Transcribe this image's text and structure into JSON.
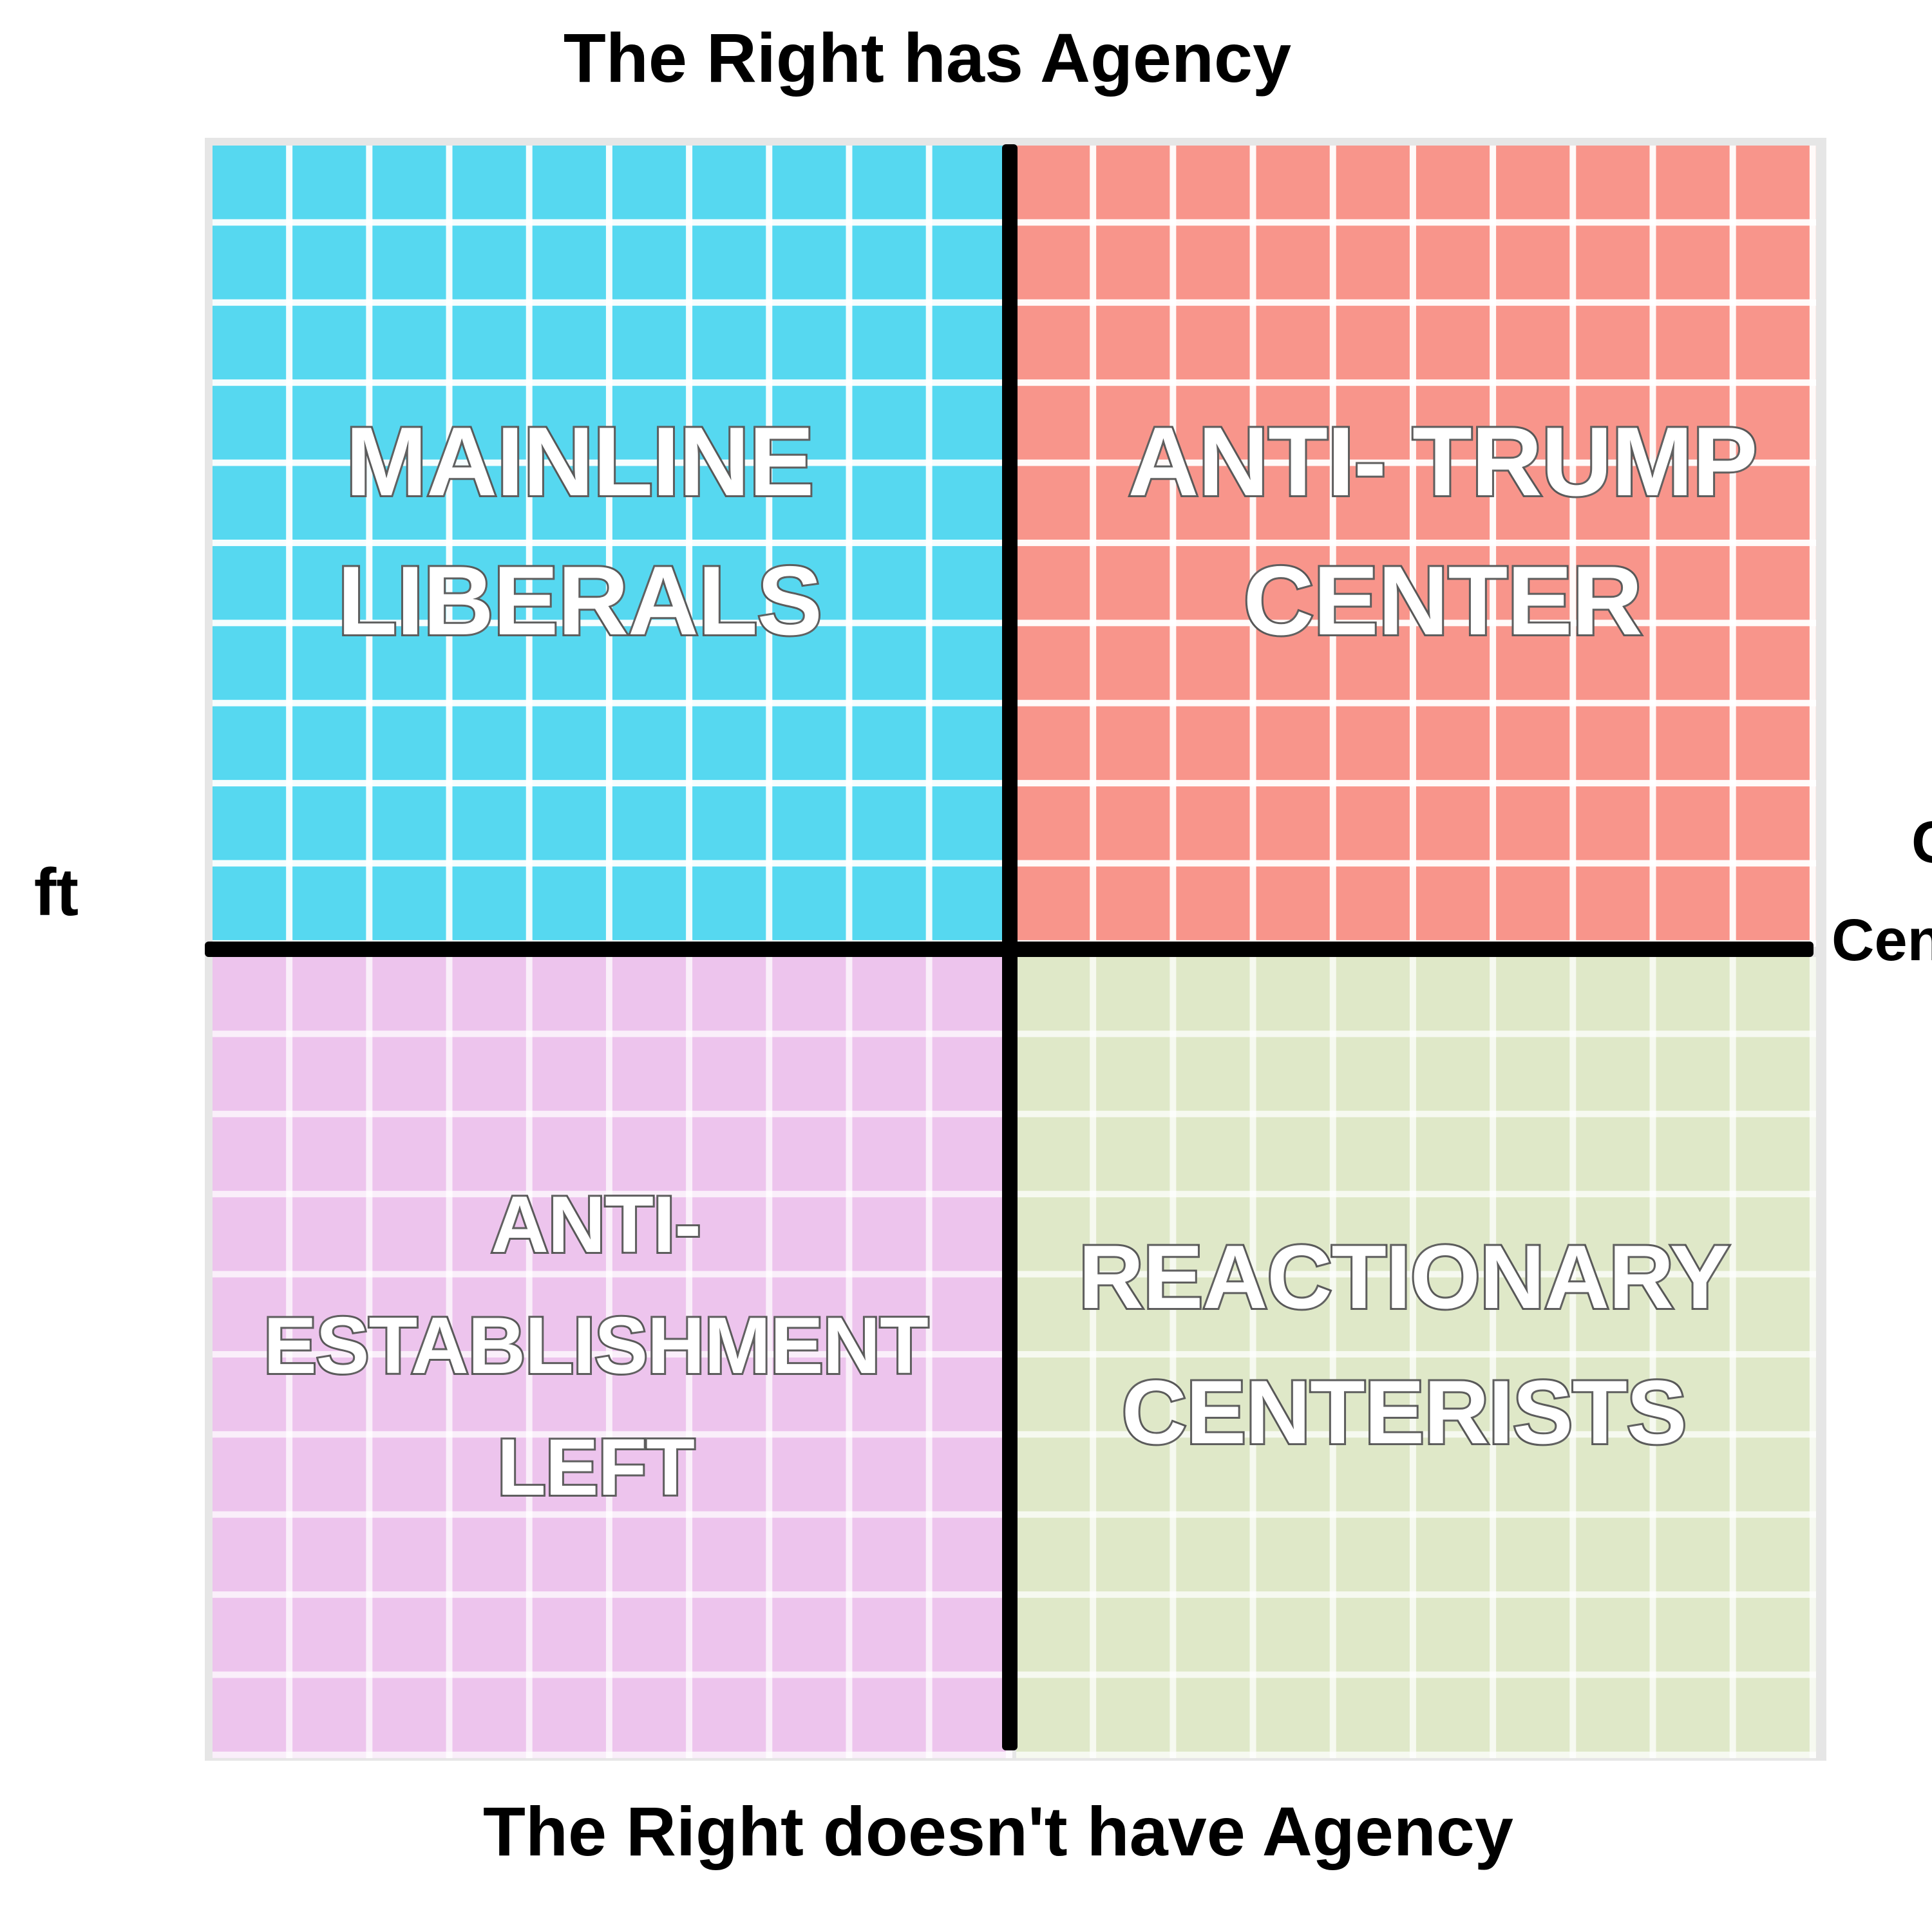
{
  "axes": {
    "top": "The Right has Agency",
    "bottom": "The Right doesn't have Agency",
    "left_visible_fragment": "ft",
    "right_visible_fragment_top": "C",
    "right_visible_fragment_bottom": "Cen"
  },
  "quadrants": {
    "top_left": {
      "label": "MAINLINE\nLIBERALS",
      "color": "#56d8f0"
    },
    "top_right": {
      "label": "ANTI- TRUMP\nCENTER",
      "color": "#f8958b"
    },
    "bottom_left": {
      "label": "ANTI-\nESTABLISHMENT\nLEFT",
      "color": "#edc4ed"
    },
    "bottom_right": {
      "label": "REACTIONARY\nCENTERISTS",
      "color": "#dfe8c8"
    }
  }
}
